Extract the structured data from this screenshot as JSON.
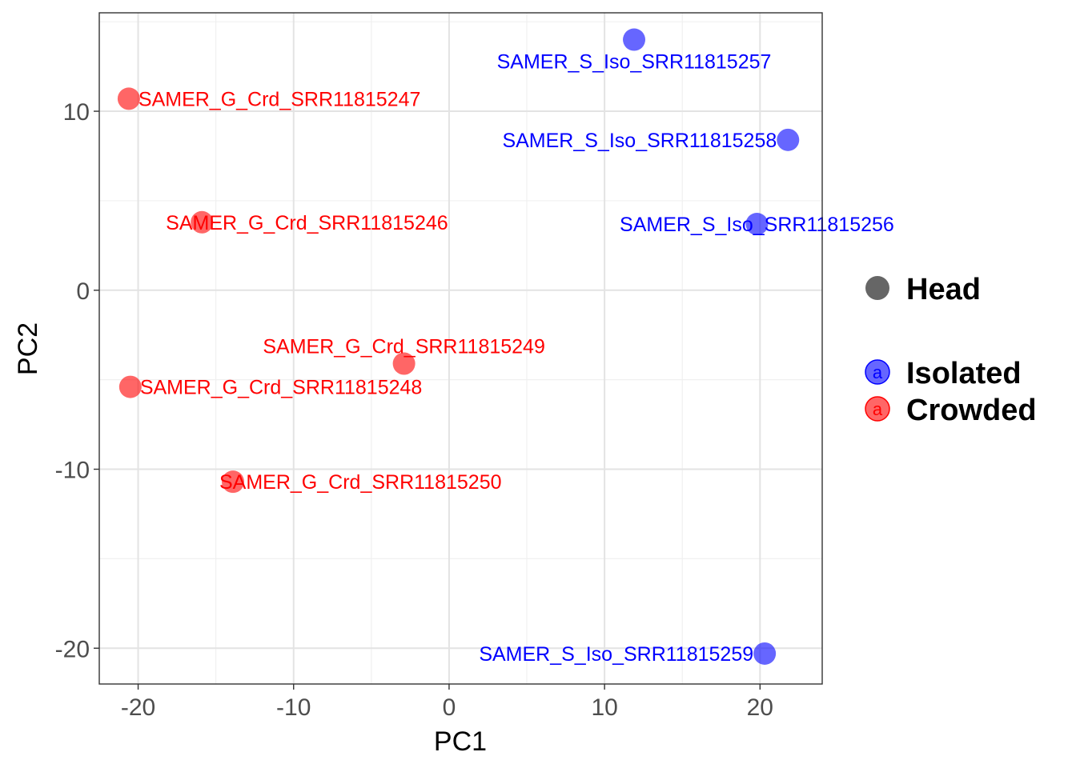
{
  "chart_data": {
    "type": "scatter",
    "xlabel": "PC1",
    "ylabel": "PC2",
    "xlim": [
      -22.5,
      24
    ],
    "ylim": [
      -22,
      15.5
    ],
    "x_ticks": [
      -20,
      -10,
      0,
      10,
      20
    ],
    "x_tick_labels": [
      "-20",
      "-10",
      "0",
      "10",
      "20"
    ],
    "y_ticks": [
      -20,
      -10,
      0,
      10
    ],
    "y_tick_labels": [
      "-20",
      "-10",
      "0",
      "10"
    ],
    "grid": true,
    "legend_position": "right",
    "legend": {
      "shape": {
        "label": "Head",
        "color": "#666666"
      },
      "groups": [
        {
          "label": "Isolated",
          "color": "#0000ff",
          "glyph": "a"
        },
        {
          "label": "Crowded",
          "color": "#ff0000",
          "glyph": "a"
        }
      ]
    },
    "series": [
      {
        "name": "Isolated",
        "color": "#0000ff",
        "points": [
          {
            "label": "SAMER_S_Iso_SRR11815257",
            "x": 11.9,
            "y": 14.0,
            "anchor": "middle"
          },
          {
            "label": "SAMER_S_Iso_SRR11815258",
            "x": 21.8,
            "y": 8.4,
            "anchor": "end"
          },
          {
            "label": "SAMER_S_Iso_SRR11815256",
            "x": 19.8,
            "y": 3.7,
            "anchor": "middle"
          },
          {
            "label": "SAMER_S_Iso_SRR11815259",
            "x": 20.3,
            "y": -20.3,
            "anchor": "end"
          }
        ]
      },
      {
        "name": "Crowded",
        "color": "#ff0000",
        "points": [
          {
            "label": "SAMER_G_Crd_SRR11815247",
            "x": -20.6,
            "y": 10.7,
            "anchor": "start"
          },
          {
            "label": "SAMER_G_Crd_SRR11815246",
            "x": -15.9,
            "y": 3.8,
            "anchor": "start"
          },
          {
            "label": "SAMER_G_Crd_SRR11815249",
            "x": -2.9,
            "y": -4.1,
            "anchor": "middle"
          },
          {
            "label": "SAMER_G_Crd_SRR11815248",
            "x": -20.5,
            "y": -5.4,
            "anchor": "start"
          },
          {
            "label": "SAMER_G_Crd_SRR11815250",
            "x": -13.9,
            "y": -10.7,
            "anchor": "start"
          }
        ]
      }
    ]
  }
}
